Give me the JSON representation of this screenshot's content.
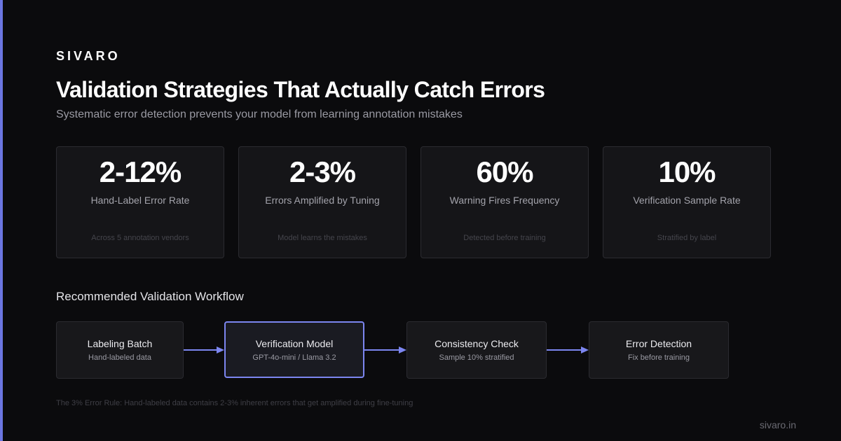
{
  "brand": "SIVARO",
  "title": "Validation Strategies That Actually Catch Errors",
  "subtitle": "Systematic error detection prevents your model from learning annotation mistakes",
  "stats": [
    {
      "value": "2-12%",
      "label": "Hand-Label Error Rate",
      "note": "Across 5 annotation vendors"
    },
    {
      "value": "2-3%",
      "label": "Errors Amplified by Tuning",
      "note": "Model learns the mistakes"
    },
    {
      "value": "60%",
      "label": "Warning Fires Frequency",
      "note": "Detected before training"
    },
    {
      "value": "10%",
      "label": "Verification Sample Rate",
      "note": "Stratified by label"
    }
  ],
  "workflow": {
    "title": "Recommended Validation Workflow",
    "steps": [
      {
        "title": "Labeling Batch",
        "subtitle": "Hand-labeled data"
      },
      {
        "title": "Verification Model",
        "subtitle": "GPT-4o-mini / Llama 3.2"
      },
      {
        "title": "Consistency Check",
        "subtitle": "Sample 10% stratified"
      },
      {
        "title": "Error Detection",
        "subtitle": "Fix before training"
      }
    ]
  },
  "footnote": "The 3% Error Rule: Hand-labeled data contains 2-3% inherent errors that get amplified during fine-tuning",
  "site": "sivaro.in",
  "colors": {
    "accent": "#6b76e0",
    "arrow": "#7c86f0",
    "background": "#0b0b0d",
    "card": "#151518"
  }
}
